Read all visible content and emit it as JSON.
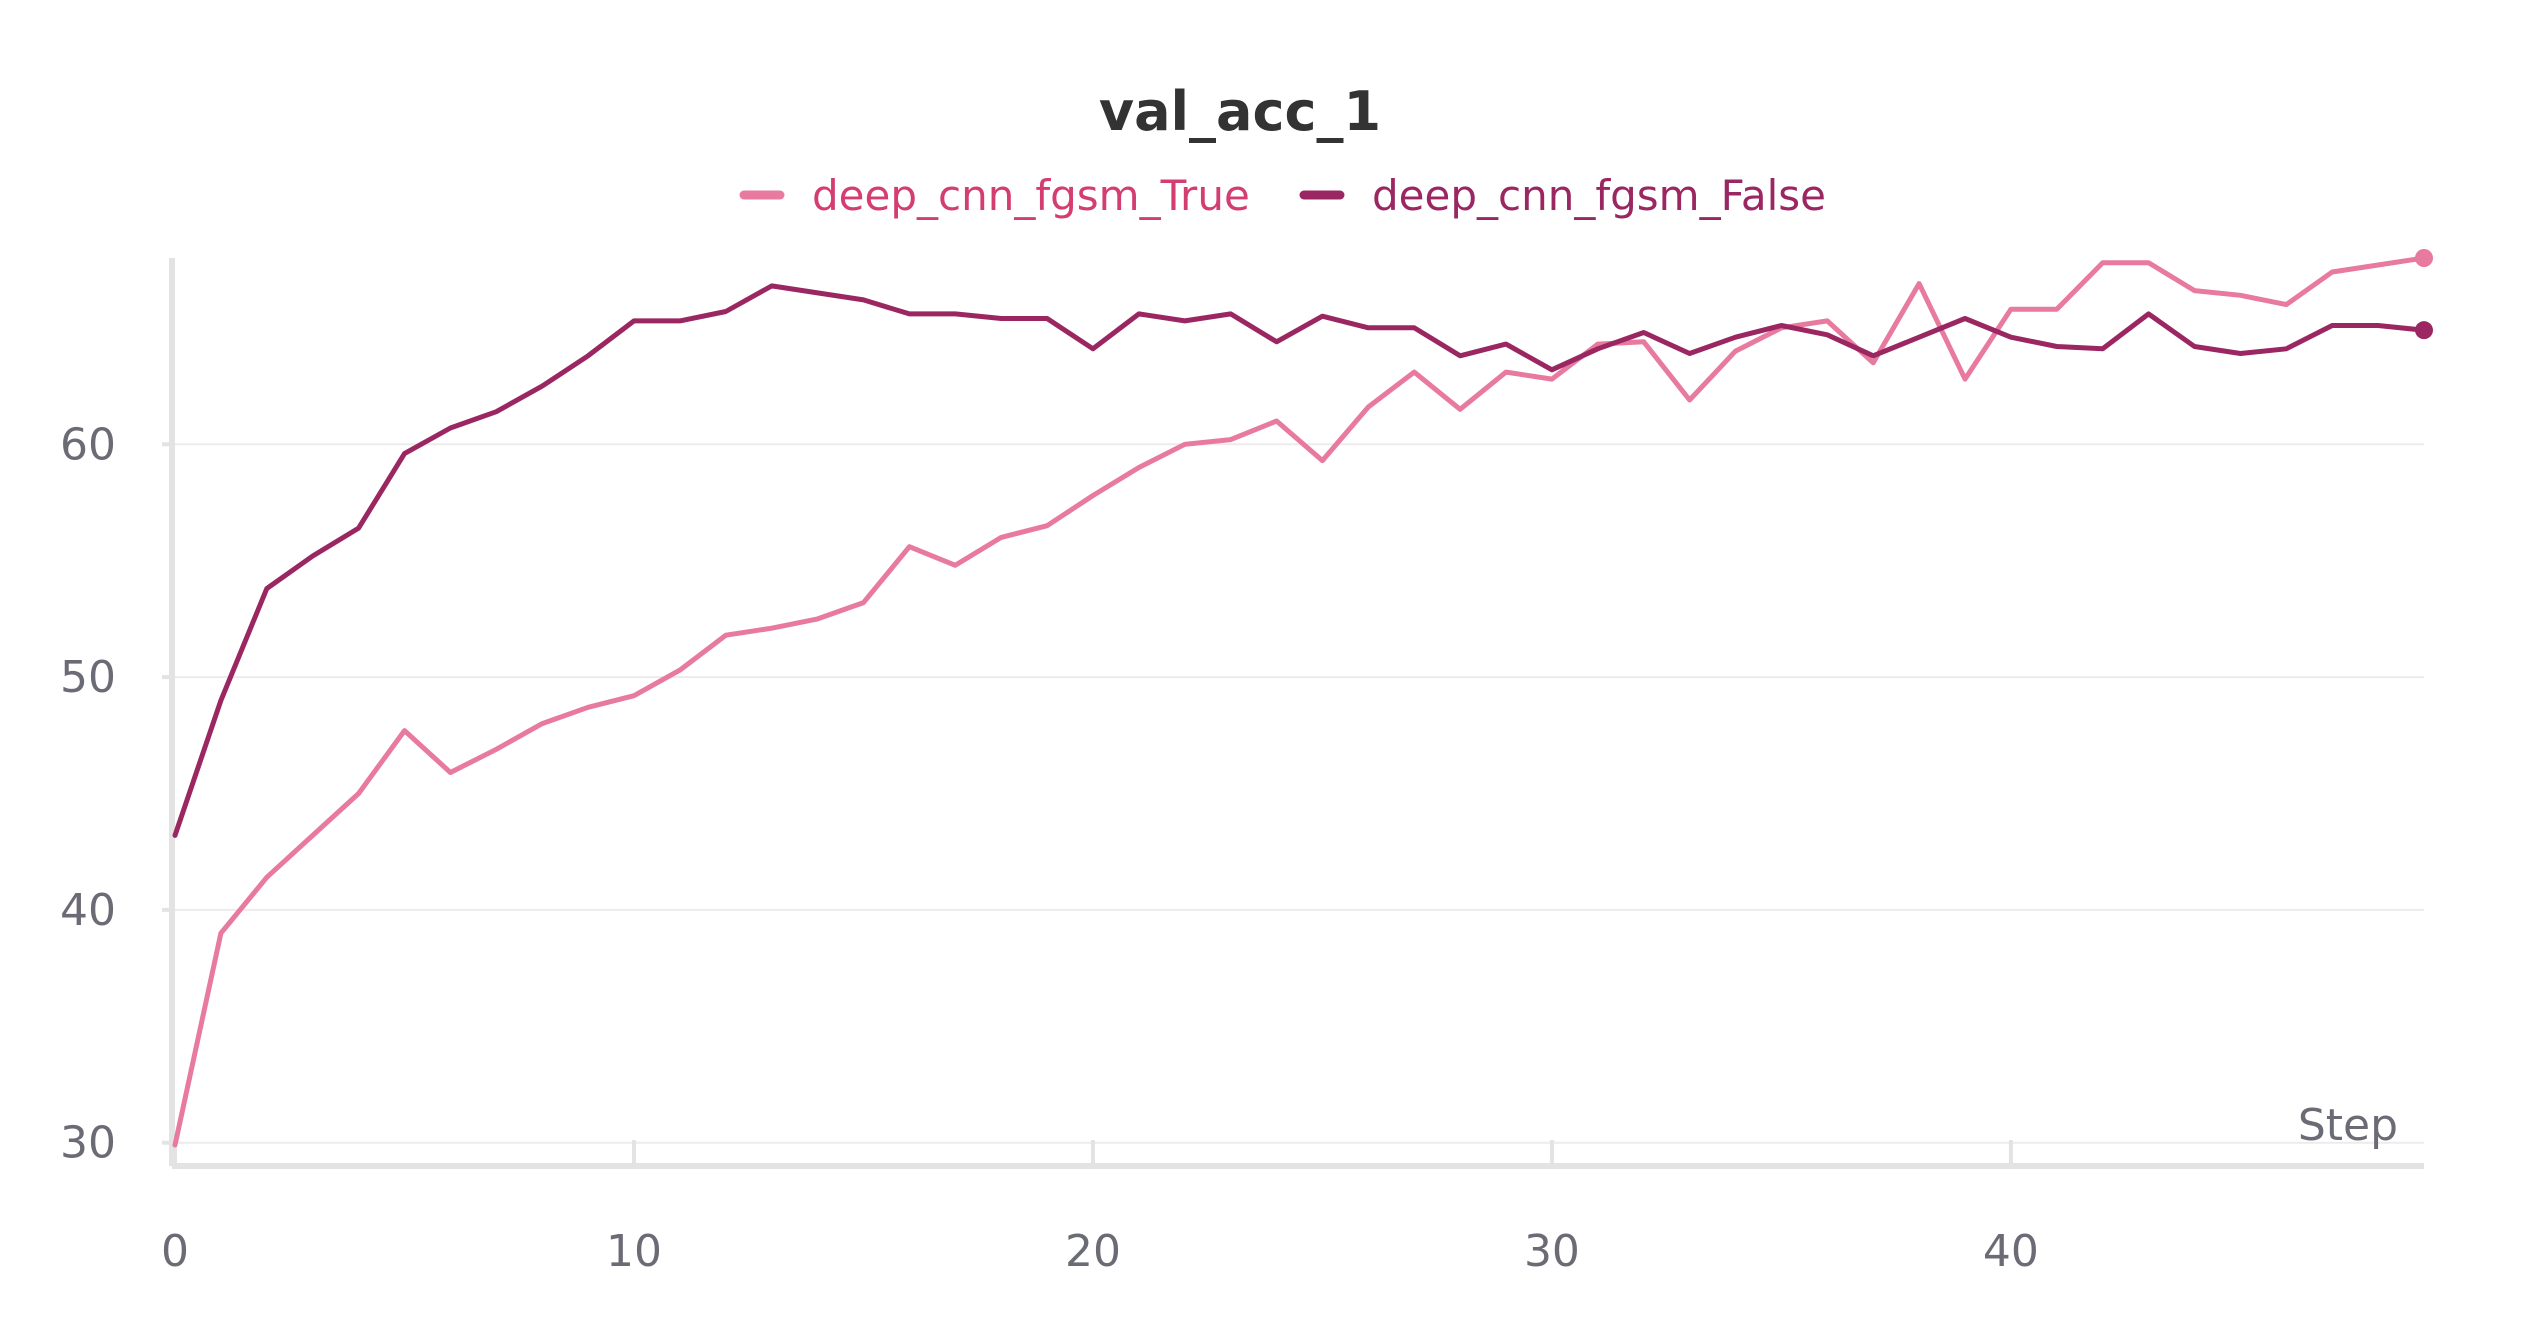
{
  "chart_data": {
    "type": "line",
    "title": "val_acc_1",
    "xlabel": "Step",
    "ylabel": "",
    "xlim": [
      0,
      49
    ],
    "ylim": [
      29,
      68
    ],
    "x_ticks": [
      0,
      10,
      20,
      30,
      40
    ],
    "y_ticks": [
      30,
      40,
      50,
      60
    ],
    "grid": true,
    "legend_position": "top-center",
    "x": [
      0,
      1,
      2,
      3,
      4,
      5,
      6,
      7,
      8,
      9,
      10,
      11,
      12,
      13,
      14,
      15,
      16,
      17,
      18,
      19,
      20,
      21,
      22,
      23,
      24,
      25,
      26,
      27,
      28,
      29,
      30,
      31,
      32,
      33,
      34,
      35,
      36,
      37,
      38,
      39,
      40,
      41,
      42,
      43,
      44,
      45,
      46,
      47,
      48,
      49
    ],
    "series": [
      {
        "name": "deep_cnn_fgsm_True",
        "color": "#e8799f",
        "values": [
          29.9,
          39.0,
          41.4,
          43.2,
          45.0,
          47.7,
          45.9,
          46.9,
          48.0,
          48.7,
          49.2,
          50.3,
          51.8,
          52.1,
          52.5,
          53.2,
          55.6,
          54.8,
          56.0,
          56.5,
          57.8,
          59.0,
          60.0,
          60.2,
          61.0,
          59.3,
          61.6,
          63.1,
          61.5,
          63.1,
          62.8,
          64.3,
          64.4,
          61.9,
          64.0,
          65.0,
          65.3,
          63.5,
          66.9,
          62.8,
          65.8,
          65.8,
          67.8,
          67.8,
          66.6,
          66.4,
          66.0,
          67.4,
          67.7,
          68.0
        ]
      },
      {
        "name": "deep_cnn_fgsm_False",
        "color": "#9b2762",
        "values": [
          43.2,
          49.0,
          53.8,
          55.2,
          56.4,
          59.6,
          60.7,
          61.4,
          62.5,
          63.8,
          65.3,
          65.3,
          65.7,
          66.8,
          66.5,
          66.2,
          65.6,
          65.6,
          65.4,
          65.4,
          64.1,
          65.6,
          65.3,
          65.6,
          64.4,
          65.5,
          65.0,
          65.0,
          63.8,
          64.3,
          63.2,
          64.1,
          64.8,
          63.9,
          64.6,
          65.1,
          64.7,
          63.8,
          64.6,
          65.4,
          64.6,
          64.2,
          64.1,
          65.6,
          64.2,
          63.9,
          64.1,
          65.1,
          65.1,
          64.9
        ]
      }
    ]
  }
}
